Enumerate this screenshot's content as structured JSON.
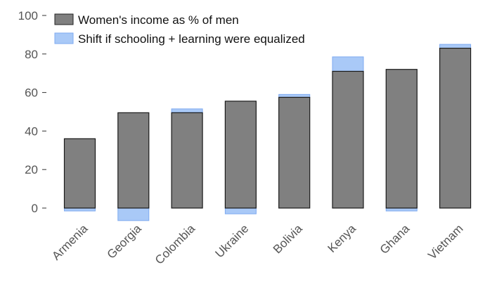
{
  "chart_data": {
    "type": "bar",
    "title": "",
    "xlabel": "",
    "ylabel": "",
    "ylim": [
      -7,
      100
    ],
    "yticks": [
      0,
      20,
      40,
      60,
      80,
      100
    ],
    "grid": false,
    "legend_position": "top-left",
    "categories": [
      "Armenia",
      "Georgia",
      "Colombia",
      "Ukraine",
      "Bolivia",
      "Kenya",
      "Ghana",
      "Vietnam"
    ],
    "series": [
      {
        "name": "Women's income as % of men",
        "color": "#808080",
        "values": [
          36,
          49.5,
          49.5,
          55.5,
          57.5,
          71,
          72,
          83
        ]
      },
      {
        "name": "Shift if schooling + learning were equalized",
        "color": "#a9c9f7",
        "values": [
          -1.5,
          -6.5,
          2,
          -3,
          1.5,
          7.5,
          -1.5,
          2
        ]
      }
    ]
  }
}
